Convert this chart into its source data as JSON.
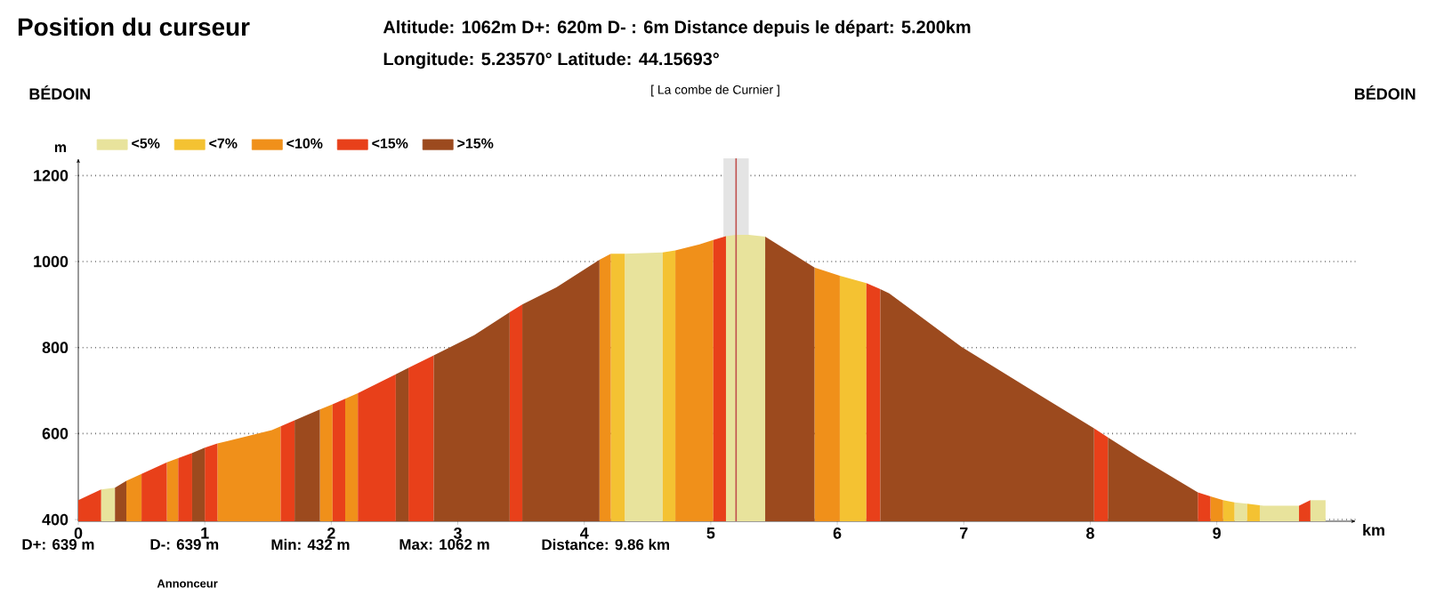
{
  "chart_data": {
    "type": "area",
    "title": "Position du curseur",
    "subtitle": "[ La combe de Curnier ]",
    "xlabel": "km",
    "ylabel": "m",
    "annotations": [
      "Altitude: 1062m   D+: 620m   D- : 6m   Distance depuis le départ: 5.200km",
      "Longitude: 5.23570°   Latitude: 44.15693°",
      "BÉDOIN",
      "BÉDOIN",
      "D+: 639 m",
      "D-: 639 m",
      "Min: 432 m",
      "Max: 1062 m",
      "Distance: 9.86 km",
      "Annonceur"
    ],
    "xlim": [
      0,
      10.1
    ],
    "ylim": [
      396,
      1240
    ],
    "xticks": [
      0,
      1,
      2,
      3,
      4,
      5,
      6,
      7,
      8,
      9
    ],
    "yticks": [
      400,
      600,
      800,
      1000,
      1200
    ],
    "grid": "y",
    "legend": "top left",
    "series": [
      {
        "name": "<5%",
        "color": "#e8e39c",
        "x": [
          0.18,
          0.29,
          null,
          4.32,
          4.62,
          null,
          5.12,
          5.2,
          5.3,
          5.43,
          null,
          9.14,
          9.24,
          null,
          9.34,
          9.37,
          9.65,
          null,
          9.74,
          9.86
        ],
        "values": [
          470,
          474,
          null,
          1018,
          1021,
          null,
          1059,
          1062,
          1062,
          1058,
          null,
          440,
          437,
          null,
          433,
          432,
          432,
          null,
          445,
          445
        ]
      },
      {
        "name": "<7%",
        "color": "#f4c232",
        "x": [
          4.21,
          4.32,
          null,
          4.62,
          4.72,
          null,
          6.02,
          6.23,
          null,
          9.05,
          9.14,
          null,
          9.24,
          9.34
        ],
        "values": [
          1018,
          1018,
          null,
          1021,
          1026,
          null,
          967,
          950,
          null,
          445,
          440,
          null,
          437,
          433
        ]
      },
      {
        "name": "<10%",
        "color": "#f0901a",
        "x": [
          0.38,
          0.5,
          null,
          0.7,
          0.79,
          null,
          1.1,
          1.53,
          1.6,
          null,
          1.91,
          2.01,
          null,
          2.11,
          2.21,
          null,
          4.12,
          4.21,
          null,
          4.72,
          4.91,
          5.02,
          null,
          5.82,
          6.02,
          null,
          8.95,
          9.05
        ],
        "values": [
          490,
          506,
          null,
          533,
          543,
          null,
          577,
          608,
          617,
          null,
          656,
          668,
          null,
          681,
          694,
          null,
          1004,
          1018,
          null,
          1026,
          1040,
          1050,
          null,
          986,
          967,
          null,
          454,
          445
        ]
      },
      {
        "name": "<15%",
        "color": "#e8401a",
        "x": [
          0,
          0.18,
          null,
          0.5,
          0.7,
          null,
          0.79,
          0.9,
          null,
          1.0,
          1.1,
          null,
          1.6,
          1.71,
          null,
          2.01,
          2.11,
          null,
          2.21,
          2.51,
          null,
          2.61,
          2.81,
          null,
          3.41,
          3.51,
          null,
          5.02,
          5.12,
          null,
          6.23,
          6.34,
          null,
          8.03,
          8.14,
          null,
          8.85,
          8.95,
          null,
          9.65,
          9.74
        ],
        "values": [
          445,
          470,
          null,
          506,
          533,
          null,
          543,
          555,
          null,
          567,
          577,
          null,
          617,
          631,
          null,
          668,
          681,
          null,
          694,
          738,
          null,
          753,
          782,
          null,
          882,
          900,
          null,
          1050,
          1059,
          null,
          950,
          936,
          null,
          612,
          591,
          null,
          463,
          454,
          null,
          432,
          445
        ]
      },
      {
        "name": ">15%",
        "color": "#9c4a1e",
        "x": [
          0.29,
          0.38,
          null,
          0.9,
          1.0,
          null,
          1.71,
          1.91,
          null,
          2.51,
          2.61,
          null,
          2.81,
          3.13,
          3.41,
          null,
          3.51,
          3.78,
          4.12,
          null,
          5.43,
          5.82,
          null,
          6.34,
          6.41,
          6.98,
          7.63,
          8.03,
          null,
          8.14,
          8.38,
          8.85
        ],
        "values": [
          474,
          490,
          null,
          555,
          567,
          null,
          631,
          656,
          null,
          738,
          753,
          null,
          782,
          829,
          882,
          null,
          900,
          940,
          1004,
          null,
          1058,
          986,
          null,
          936,
          926,
          802,
          684,
          612,
          null,
          591,
          546,
          463
        ]
      }
    ],
    "ref_lines": [
      {
        "axis": "x",
        "value": 5.2,
        "color": "#c0504d"
      }
    ],
    "bands": [
      {
        "axis": "x",
        "from": 5.1,
        "to": 5.3,
        "color": "#e4e4e4"
      }
    ]
  }
}
